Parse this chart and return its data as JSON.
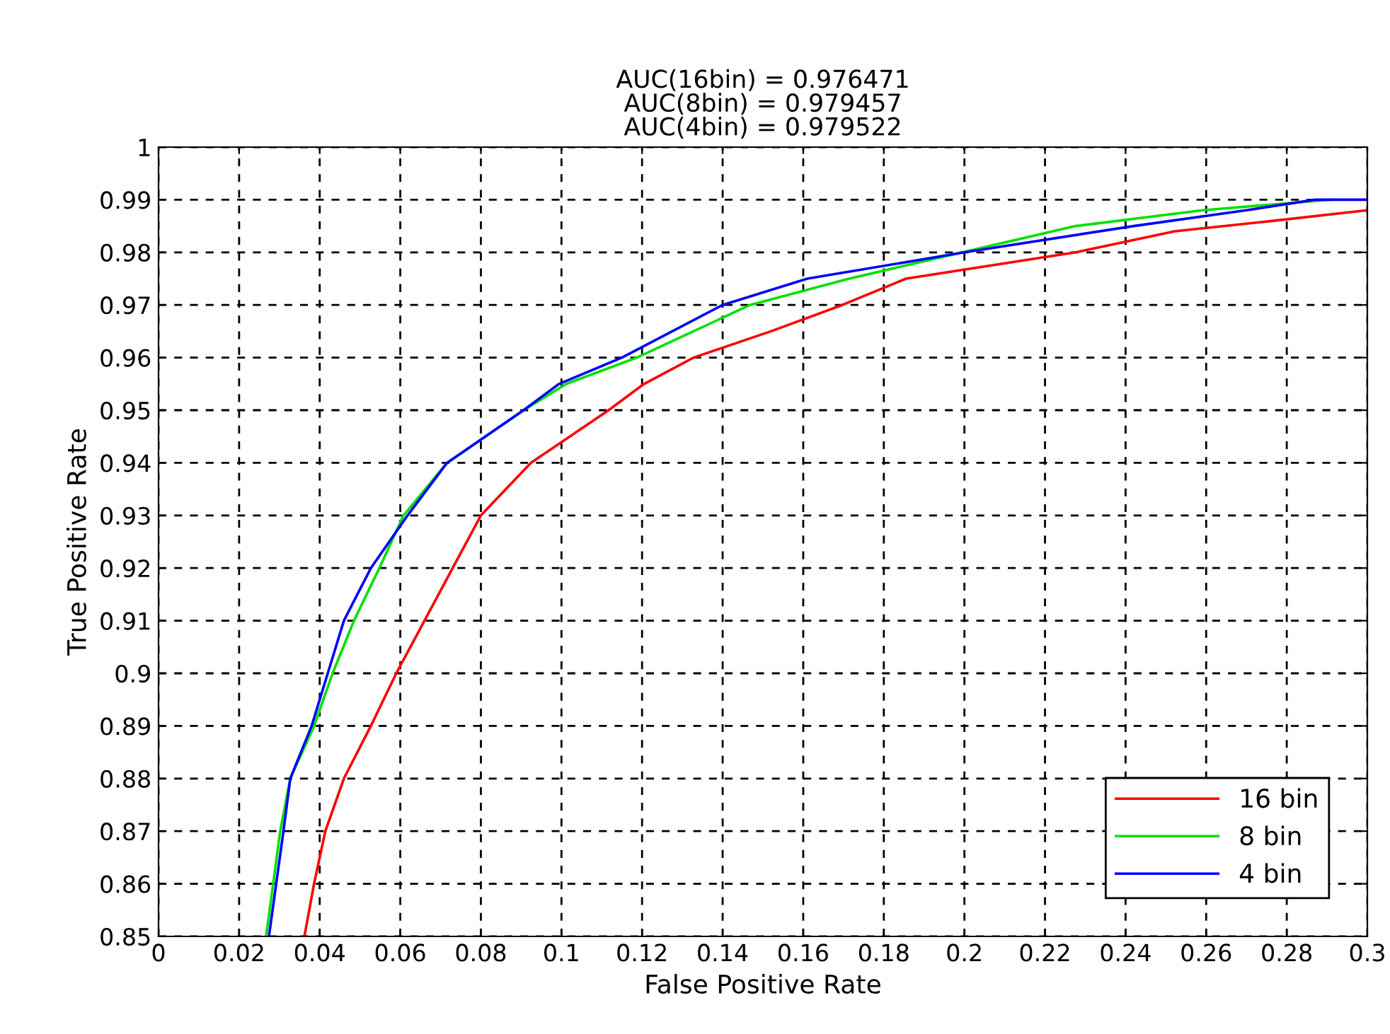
{
  "chart_data": {
    "type": "line",
    "title": "AUC(16bin) = 0.976471\nAUC(8bin) = 0.979457\nAUC(4bin) = 0.979522",
    "xlabel": "False Positive Rate",
    "ylabel": "True Positive Rate",
    "xlim": [
      0,
      0.3
    ],
    "ylim": [
      0.85,
      1
    ],
    "xticks": [
      0,
      0.02,
      0.04,
      0.06,
      0.08,
      0.1,
      0.12,
      0.14,
      0.16,
      0.18,
      0.2,
      0.22,
      0.24,
      0.26,
      0.28,
      0.3
    ],
    "yticks": [
      0.85,
      0.86,
      0.87,
      0.88,
      0.89,
      0.9,
      0.91,
      0.92,
      0.93,
      0.94,
      0.95,
      0.96,
      0.97,
      0.98,
      0.99,
      1
    ],
    "grid": true,
    "legend": "bottom right",
    "line_style": "solid",
    "series": [
      {
        "name": "16 bin",
        "color": "#ff0000",
        "x": [
          0.0362,
          0.0386,
          0.0414,
          0.046,
          0.0527,
          0.059,
          0.066,
          0.073,
          0.08,
          0.0924,
          0.1117,
          0.1205,
          0.1328,
          0.152,
          0.1697,
          0.1855,
          0.2276,
          0.2522,
          0.2768,
          0.3
        ],
        "values": [
          0.85,
          0.86,
          0.87,
          0.88,
          0.89,
          0.9,
          0.91,
          0.92,
          0.93,
          0.94,
          0.95,
          0.955,
          0.96,
          0.965,
          0.97,
          0.975,
          0.98,
          0.984,
          0.986,
          0.988
        ]
      },
      {
        "name": "8 bin",
        "color": "#00e000",
        "x": [
          0.0267,
          0.0302,
          0.0327,
          0.0386,
          0.0432,
          0.0485,
          0.0548,
          0.0608,
          0.0716,
          0.0906,
          0.1012,
          0.1187,
          0.1468,
          0.1714,
          0.1995,
          0.2276,
          0.2592,
          0.2908
        ],
        "values": [
          0.85,
          0.87,
          0.88,
          0.89,
          0.9,
          0.91,
          0.92,
          0.93,
          0.94,
          0.95,
          0.955,
          0.96,
          0.97,
          0.975,
          0.98,
          0.985,
          0.988,
          0.99
        ]
      },
      {
        "name": "4 bin",
        "color": "#0000ff",
        "x": [
          0.0274,
          0.031,
          0.0327,
          0.038,
          0.042,
          0.046,
          0.0527,
          0.0618,
          0.0716,
          0.0906,
          0.0994,
          0.115,
          0.14,
          0.161,
          0.2,
          0.242,
          0.27,
          0.287,
          0.3
        ],
        "values": [
          0.85,
          0.87,
          0.88,
          0.89,
          0.9,
          0.91,
          0.92,
          0.93,
          0.94,
          0.95,
          0.955,
          0.96,
          0.97,
          0.975,
          0.98,
          0.985,
          0.988,
          0.99,
          0.99
        ]
      }
    ]
  }
}
